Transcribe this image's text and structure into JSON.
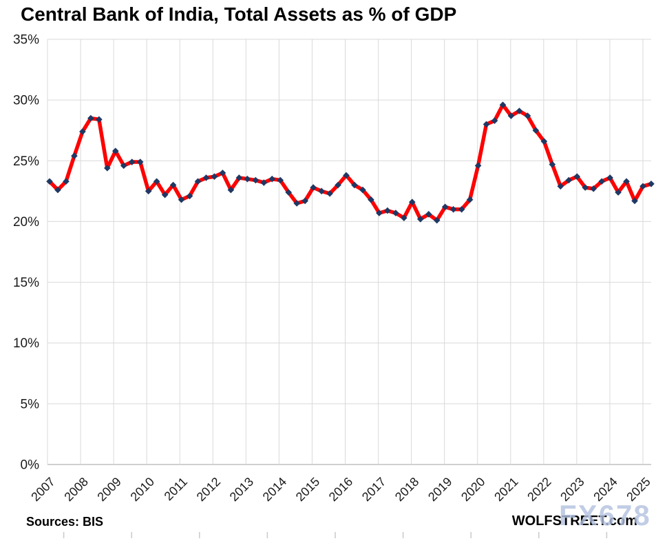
{
  "title": "Central Bank of India, Total Assets as % of GDP",
  "footer": {
    "source": "Sources: BIS",
    "brand": "WOLFSTREET.com",
    "watermark": "FX678"
  },
  "colors": {
    "line": "#FF0000",
    "marker": "#1F3864",
    "grid": "#D9D9D9",
    "axis": "#BFBFBF",
    "bottom_ticks": "#C9C9C9",
    "text": "#1a1a1a",
    "watermark": "rgba(177,192,222,0.80)"
  },
  "chart_data": {
    "type": "line",
    "title": "Central Bank of India, Total Assets as % of GDP",
    "xlabel": "",
    "ylabel": "Total assets as % of GDP",
    "ylim": [
      0,
      35
    ],
    "grid": true,
    "legend": false,
    "frequency": "quarterly",
    "y_tick_values": [
      0,
      5,
      10,
      15,
      20,
      25,
      30,
      35
    ],
    "y_tick_labels": [
      "0%",
      "5%",
      "10%",
      "15%",
      "20%",
      "25%",
      "30%",
      "35%"
    ],
    "x_tick_labels": [
      "2007",
      "2008",
      "2009",
      "2010",
      "2011",
      "2012",
      "2013",
      "2014",
      "2015",
      "2016",
      "2017",
      "2018",
      "2019",
      "2020",
      "2021",
      "2022",
      "2023",
      "2024",
      "2025"
    ],
    "series": [
      {
        "name": "Central Bank of India total assets as % of GDP",
        "x": [
          "2007Q1",
          "2007Q2",
          "2007Q3",
          "2007Q4",
          "2008Q1",
          "2008Q2",
          "2008Q3",
          "2008Q4",
          "2009Q1",
          "2009Q2",
          "2009Q3",
          "2009Q4",
          "2010Q1",
          "2010Q2",
          "2010Q3",
          "2010Q4",
          "2011Q1",
          "2011Q2",
          "2011Q3",
          "2011Q4",
          "2012Q1",
          "2012Q2",
          "2012Q3",
          "2012Q4",
          "2013Q1",
          "2013Q2",
          "2013Q3",
          "2013Q4",
          "2014Q1",
          "2014Q2",
          "2014Q3",
          "2014Q4",
          "2015Q1",
          "2015Q2",
          "2015Q3",
          "2015Q4",
          "2016Q1",
          "2016Q2",
          "2016Q3",
          "2016Q4",
          "2017Q1",
          "2017Q2",
          "2017Q3",
          "2017Q4",
          "2018Q1",
          "2018Q2",
          "2018Q3",
          "2018Q4",
          "2019Q1",
          "2019Q2",
          "2019Q3",
          "2019Q4",
          "2020Q1",
          "2020Q2",
          "2020Q3",
          "2020Q4",
          "2021Q1",
          "2021Q2",
          "2021Q3",
          "2021Q4",
          "2022Q1",
          "2022Q2",
          "2022Q3",
          "2022Q4",
          "2023Q1",
          "2023Q2",
          "2023Q3",
          "2023Q4",
          "2024Q1",
          "2024Q2",
          "2024Q3",
          "2024Q4",
          "2025Q1",
          "2025Q2"
        ],
        "values": [
          23.3,
          22.6,
          23.3,
          25.4,
          27.4,
          28.5,
          28.4,
          24.4,
          25.8,
          24.6,
          24.9,
          24.9,
          22.5,
          23.3,
          22.2,
          23.0,
          21.8,
          22.1,
          23.3,
          23.6,
          23.7,
          24.0,
          22.6,
          23.6,
          23.5,
          23.4,
          23.2,
          23.5,
          23.4,
          22.4,
          21.5,
          21.7,
          22.8,
          22.5,
          22.3,
          23.0,
          23.8,
          23.0,
          22.6,
          21.8,
          20.7,
          20.9,
          20.7,
          20.3,
          21.6,
          20.2,
          20.6,
          20.1,
          21.2,
          21.0,
          21.0,
          21.8,
          24.6,
          28.0,
          28.3,
          29.6,
          28.7,
          29.1,
          28.7,
          27.5,
          26.6,
          24.7,
          22.9,
          23.4,
          23.7,
          22.8,
          22.7,
          23.3,
          23.6,
          22.4,
          23.3,
          21.7,
          22.9,
          23.1
        ]
      }
    ]
  }
}
